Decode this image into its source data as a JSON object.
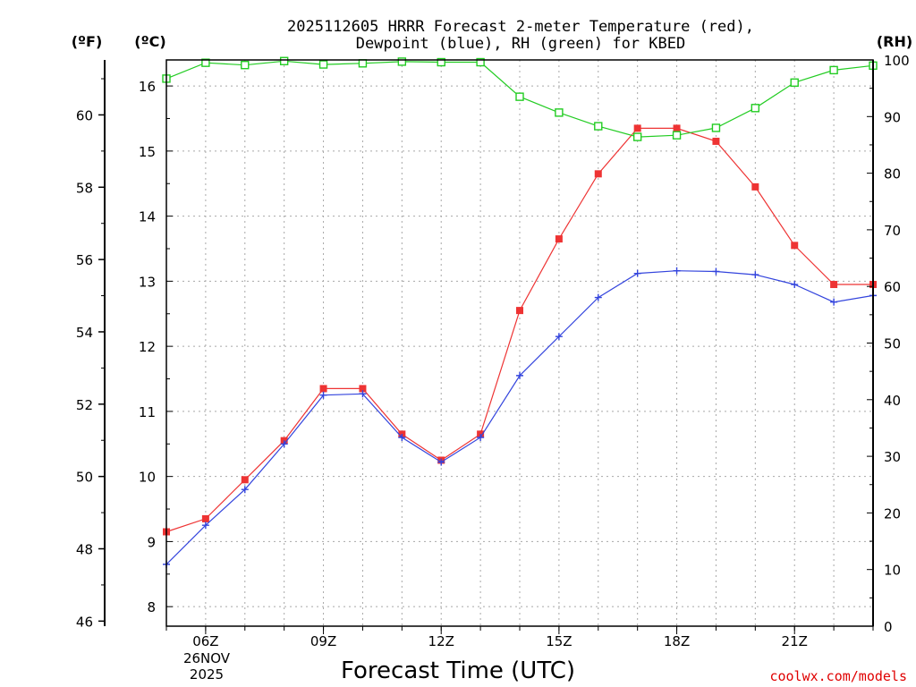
{
  "chart_data": {
    "type": "line",
    "title_line1": "2025112605 HRRR Forecast 2-meter Temperature (red),",
    "title_line2": "Dewpoint (blue), RH (green) for KBED",
    "xlabel": "Forecast Time (UTC)",
    "credit": "coolwx.com/models",
    "date_label": [
      "26NOV",
      "2025"
    ],
    "unit_labels": {
      "fahrenheit": "(ºF)",
      "celsius": "(ºC)",
      "rh": "(RH)"
    },
    "x_hours": [
      5,
      6,
      7,
      8,
      9,
      10,
      11,
      12,
      13,
      14,
      15,
      16,
      17,
      18,
      19,
      20,
      21,
      22,
      23
    ],
    "x_ticks": [
      {
        "hour": 6,
        "label": "06Z"
      },
      {
        "hour": 9,
        "label": "09Z"
      },
      {
        "hour": 12,
        "label": "12Z"
      },
      {
        "hour": 15,
        "label": "15Z"
      },
      {
        "hour": 18,
        "label": "18Z"
      },
      {
        "hour": 21,
        "label": "21Z"
      }
    ],
    "xlim": [
      5,
      23
    ],
    "celsius_axis": {
      "ylim": [
        7.7,
        16.4
      ],
      "ticks": [
        8,
        9,
        10,
        11,
        12,
        13,
        14,
        15,
        16
      ]
    },
    "fahrenheit_axis": {
      "ticks": [
        46,
        48,
        50,
        52,
        54,
        56,
        58,
        60
      ]
    },
    "rh_axis": {
      "ylim": [
        0,
        100
      ],
      "ticks": [
        0,
        10,
        20,
        30,
        40,
        50,
        60,
        70,
        80,
        90,
        100
      ]
    },
    "series": [
      {
        "name": "Temperature",
        "axis": "celsius",
        "color": "#ee3333",
        "marker": "filled-square",
        "values": [
          9.15,
          9.35,
          9.95,
          10.55,
          11.35,
          11.35,
          10.65,
          10.25,
          10.65,
          12.55,
          13.65,
          14.65,
          15.35,
          15.35,
          15.15,
          14.45,
          13.55,
          12.95,
          12.95
        ]
      },
      {
        "name": "Dewpoint",
        "axis": "celsius",
        "color": "#3344dd",
        "marker": "plus",
        "values": [
          8.65,
          9.25,
          9.8,
          10.5,
          11.25,
          11.27,
          10.6,
          10.22,
          10.6,
          11.55,
          12.15,
          12.75,
          13.12,
          13.16,
          13.15,
          13.1,
          12.95,
          12.68,
          12.78
        ]
      },
      {
        "name": "Relative Humidity",
        "axis": "rh",
        "color": "#22cc22",
        "marker": "open-square",
        "values": [
          96.7,
          99.5,
          99.1,
          99.8,
          99.2,
          99.4,
          99.7,
          99.6,
          99.6,
          93.5,
          90.7,
          88.3,
          86.4,
          86.7,
          88.0,
          91.5,
          96.0,
          98.2,
          99.0
        ]
      }
    ]
  }
}
